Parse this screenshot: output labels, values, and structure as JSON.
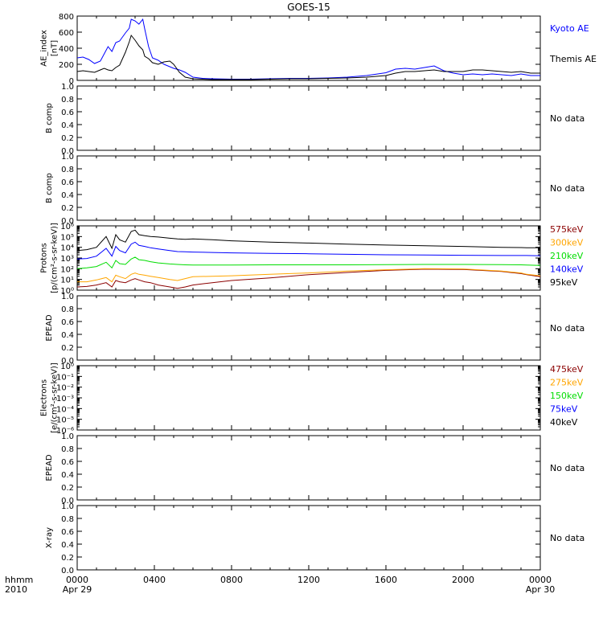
{
  "title": "GOES-15",
  "time_axis": {
    "label_line1": "hhmm",
    "label_line2": "2010",
    "ticks": [
      {
        "hour": 0,
        "label": "0000",
        "sub": "Apr 29"
      },
      {
        "hour": 4,
        "label": "0400",
        "sub": ""
      },
      {
        "hour": 8,
        "label": "0800",
        "sub": ""
      },
      {
        "hour": 12,
        "label": "1200",
        "sub": ""
      },
      {
        "hour": 16,
        "label": "1600",
        "sub": ""
      },
      {
        "hour": 20,
        "label": "2000",
        "sub": ""
      },
      {
        "hour": 24,
        "label": "0000",
        "sub": "Apr 30"
      }
    ]
  },
  "colors": {
    "axis": "#000000",
    "kyoto": "#0000ff",
    "themis": "#000000",
    "ch_575": "#8b0000",
    "ch_300": "#ffa500",
    "ch_210": "#00dd00",
    "ch_140": "#0000ff",
    "ch_95": "#000000"
  },
  "panels": [
    {
      "id": "ae",
      "ylabel": [
        "AE_index",
        "[nT]"
      ],
      "tick_labels": [
        "800",
        "600",
        "400",
        "200",
        "0"
      ],
      "note": "",
      "legend": [
        {
          "text": "Kyoto AE",
          "color": "#0000ff"
        },
        {
          "text": "Themis AE",
          "color": "#000000"
        }
      ]
    },
    {
      "id": "b1",
      "ylabel": [
        "B comp"
      ],
      "tick_labels": [
        "1.0",
        "0.8",
        "0.6",
        "0.4",
        "0.2",
        "0.0"
      ],
      "note": "No data",
      "legend": []
    },
    {
      "id": "b2",
      "ylabel": [
        "B comp"
      ],
      "tick_labels": [
        "1.0",
        "0.8",
        "0.6",
        "0.4",
        "0.2",
        "0.0"
      ],
      "note": "No data",
      "legend": []
    },
    {
      "id": "protons",
      "ylabel": [
        "Protons",
        "[p/(cm²-s-sr-keV)]"
      ],
      "tick_labels": [
        "10⁶",
        "10⁵",
        "10⁴",
        "10³",
        "10²",
        "10¹",
        "10⁰"
      ],
      "note": "",
      "legend": [
        {
          "text": "575keV",
          "color": "#8b0000"
        },
        {
          "text": "300keV",
          "color": "#ffa500"
        },
        {
          "text": "210keV",
          "color": "#00dd00"
        },
        {
          "text": "140keV",
          "color": "#0000ff"
        },
        {
          "text": "95keV",
          "color": "#000000"
        }
      ]
    },
    {
      "id": "epead1",
      "ylabel": [
        "EPEAD"
      ],
      "tick_labels": [
        "1.0",
        "0.8",
        "0.6",
        "0.4",
        "0.2",
        "0.0"
      ],
      "note": "No data",
      "legend": []
    },
    {
      "id": "electrons",
      "ylabel": [
        "Electrons",
        "[e/(cm²-s-sr-keV)]"
      ],
      "tick_labels": [
        "10⁰",
        "10⁻¹",
        "10⁻²",
        "10⁻³",
        "10⁻⁴",
        "10⁻⁵",
        "10⁻⁶"
      ],
      "note": "",
      "legend": [
        {
          "text": "475keV",
          "color": "#8b0000"
        },
        {
          "text": "275keV",
          "color": "#ffa500"
        },
        {
          "text": "150keV",
          "color": "#00dd00"
        },
        {
          "text": "75keV",
          "color": "#0000ff"
        },
        {
          "text": "40keV",
          "color": "#000000"
        }
      ]
    },
    {
      "id": "epead2",
      "ylabel": [
        "EPEAD"
      ],
      "tick_labels": [
        "1.0",
        "0.8",
        "0.6",
        "0.4",
        "0.2",
        "0.0"
      ],
      "note": "No data",
      "legend": []
    },
    {
      "id": "xray",
      "ylabel": [
        "X-ray"
      ],
      "tick_labels": [
        "1.0",
        "0.8",
        "0.6",
        "0.4",
        "0.2",
        "0.0"
      ],
      "note": "No data",
      "legend": []
    }
  ],
  "chart_data": {
    "type": "line",
    "title": "GOES-15",
    "x_unit": "hours since 2010-04-29 00:00 UT",
    "xlim": [
      0,
      24
    ],
    "ae": {
      "ylabel": "AE_index [nT]",
      "ylim": [
        0,
        800
      ],
      "x": [
        0,
        0.3,
        0.6,
        0.9,
        1.2,
        1.4,
        1.6,
        1.8,
        2.0,
        2.2,
        2.5,
        2.7,
        2.8,
        3.0,
        3.2,
        3.4,
        3.5,
        3.7,
        3.9,
        4.2,
        4.5,
        4.8,
        5.0,
        5.3,
        5.6,
        6.0,
        6.5,
        7,
        8,
        9,
        10,
        11,
        12,
        13,
        14,
        15,
        16,
        16.5,
        17,
        17.5,
        18,
        18.5,
        19,
        19.5,
        20,
        20.5,
        21,
        21.5,
        22,
        22.5,
        23,
        23.5,
        24
      ],
      "series": [
        {
          "name": "Kyoto AE",
          "color": "#0000ff",
          "values": [
            280,
            290,
            260,
            210,
            240,
            330,
            420,
            360,
            470,
            490,
            590,
            650,
            760,
            740,
            700,
            760,
            640,
            420,
            280,
            250,
            200,
            170,
            150,
            130,
            100,
            40,
            25,
            20,
            15,
            15,
            20,
            25,
            25,
            30,
            40,
            60,
            95,
            140,
            150,
            140,
            160,
            180,
            120,
            90,
            70,
            80,
            70,
            80,
            70,
            60,
            80,
            60,
            60
          ]
        },
        {
          "name": "Themis AE",
          "color": "#000000",
          "values": [
            110,
            120,
            110,
            100,
            130,
            150,
            130,
            120,
            160,
            190,
            350,
            480,
            560,
            500,
            430,
            380,
            300,
            270,
            220,
            200,
            230,
            240,
            200,
            100,
            40,
            20,
            15,
            10,
            10,
            10,
            15,
            20,
            20,
            25,
            30,
            40,
            60,
            90,
            110,
            110,
            120,
            130,
            110,
            110,
            110,
            130,
            130,
            120,
            110,
            100,
            110,
            90,
            90
          ]
        }
      ]
    },
    "protons": {
      "ylabel": "Protons [p/(cm²-s-sr-keV)]",
      "yscale": "log",
      "ylim": [
        1,
        1000000
      ],
      "x": [
        0,
        0.5,
        1.0,
        1.5,
        1.8,
        2.0,
        2.2,
        2.5,
        2.8,
        3.0,
        3.2,
        3.5,
        3.8,
        4.2,
        4.8,
        5.2,
        5.6,
        6.0,
        7,
        8,
        10,
        12,
        14,
        16,
        18,
        20,
        22,
        23,
        23.3,
        24
      ],
      "series": [
        {
          "name": "575keV",
          "color": "#8b0000",
          "values": [
            2,
            2.2,
            3,
            5,
            2,
            8,
            6,
            5,
            9,
            12,
            9,
            6,
            5,
            3,
            2,
            1.5,
            2,
            3,
            5,
            8,
            14,
            28,
            45,
            70,
            90,
            85,
            55,
            35,
            28,
            18
          ]
        },
        {
          "name": "300keV",
          "color": "#ffa500",
          "values": [
            6,
            6,
            9,
            15,
            6,
            25,
            18,
            12,
            30,
            40,
            30,
            25,
            20,
            15,
            10,
            8,
            12,
            18,
            20,
            22,
            30,
            40,
            60,
            80,
            100,
            95,
            60,
            40,
            30,
            22
          ]
        },
        {
          "name": "210keV",
          "color": "#00dd00",
          "values": [
            100,
            120,
            160,
            400,
            120,
            600,
            300,
            250,
            800,
            1200,
            700,
            600,
            450,
            350,
            280,
            250,
            230,
            220,
            220,
            220,
            230,
            230,
            230,
            240,
            250,
            250,
            240,
            230,
            220,
            200
          ]
        },
        {
          "name": "140keV",
          "color": "#0000ff",
          "values": [
            800,
            900,
            1500,
            8000,
            1500,
            12000,
            5000,
            3000,
            20000,
            30000,
            15000,
            12000,
            9000,
            7000,
            5000,
            4000,
            3800,
            3600,
            3300,
            3000,
            2700,
            2500,
            2200,
            2000,
            1900,
            1800,
            1700,
            1700,
            1700,
            1600
          ]
        },
        {
          "name": "95keV",
          "color": "#000000",
          "values": [
            5000,
            6000,
            10000,
            100000,
            8000,
            150000,
            50000,
            30000,
            300000,
            400000,
            150000,
            120000,
            100000,
            90000,
            70000,
            60000,
            55000,
            60000,
            50000,
            40000,
            30000,
            25000,
            20000,
            16000,
            14000,
            12000,
            10000,
            9500,
            9000,
            9000
          ]
        }
      ]
    },
    "electrons": {
      "ylabel": "Electrons [e/(cm²-s-sr-keV)]",
      "yscale": "log",
      "ylim": [
        1e-06,
        1
      ],
      "series": [
        {
          "name": "475keV",
          "values": []
        },
        {
          "name": "275keV",
          "values": []
        },
        {
          "name": "150keV",
          "values": []
        },
        {
          "name": "75keV",
          "values": []
        },
        {
          "name": "40keV",
          "values": []
        }
      ]
    }
  }
}
